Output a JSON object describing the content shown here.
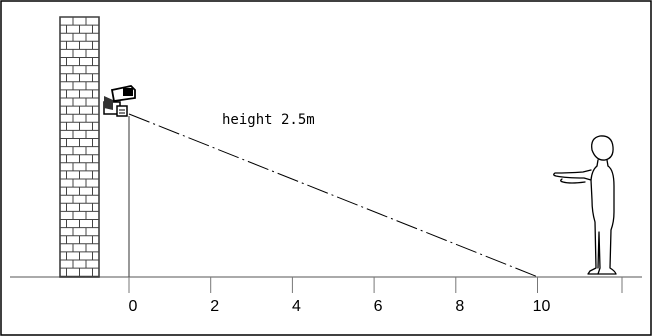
{
  "annotation": {
    "text": "height 2.5m"
  },
  "axis": {
    "ticks": [
      "0",
      "2",
      "4",
      "6",
      "8",
      "10"
    ]
  },
  "colors": {
    "line": "#000000",
    "brick": "#444444",
    "ground": "#777777"
  },
  "icons": {
    "camera": "security-camera-icon",
    "person": "person-figure-icon",
    "wall": "brick-wall-icon"
  }
}
